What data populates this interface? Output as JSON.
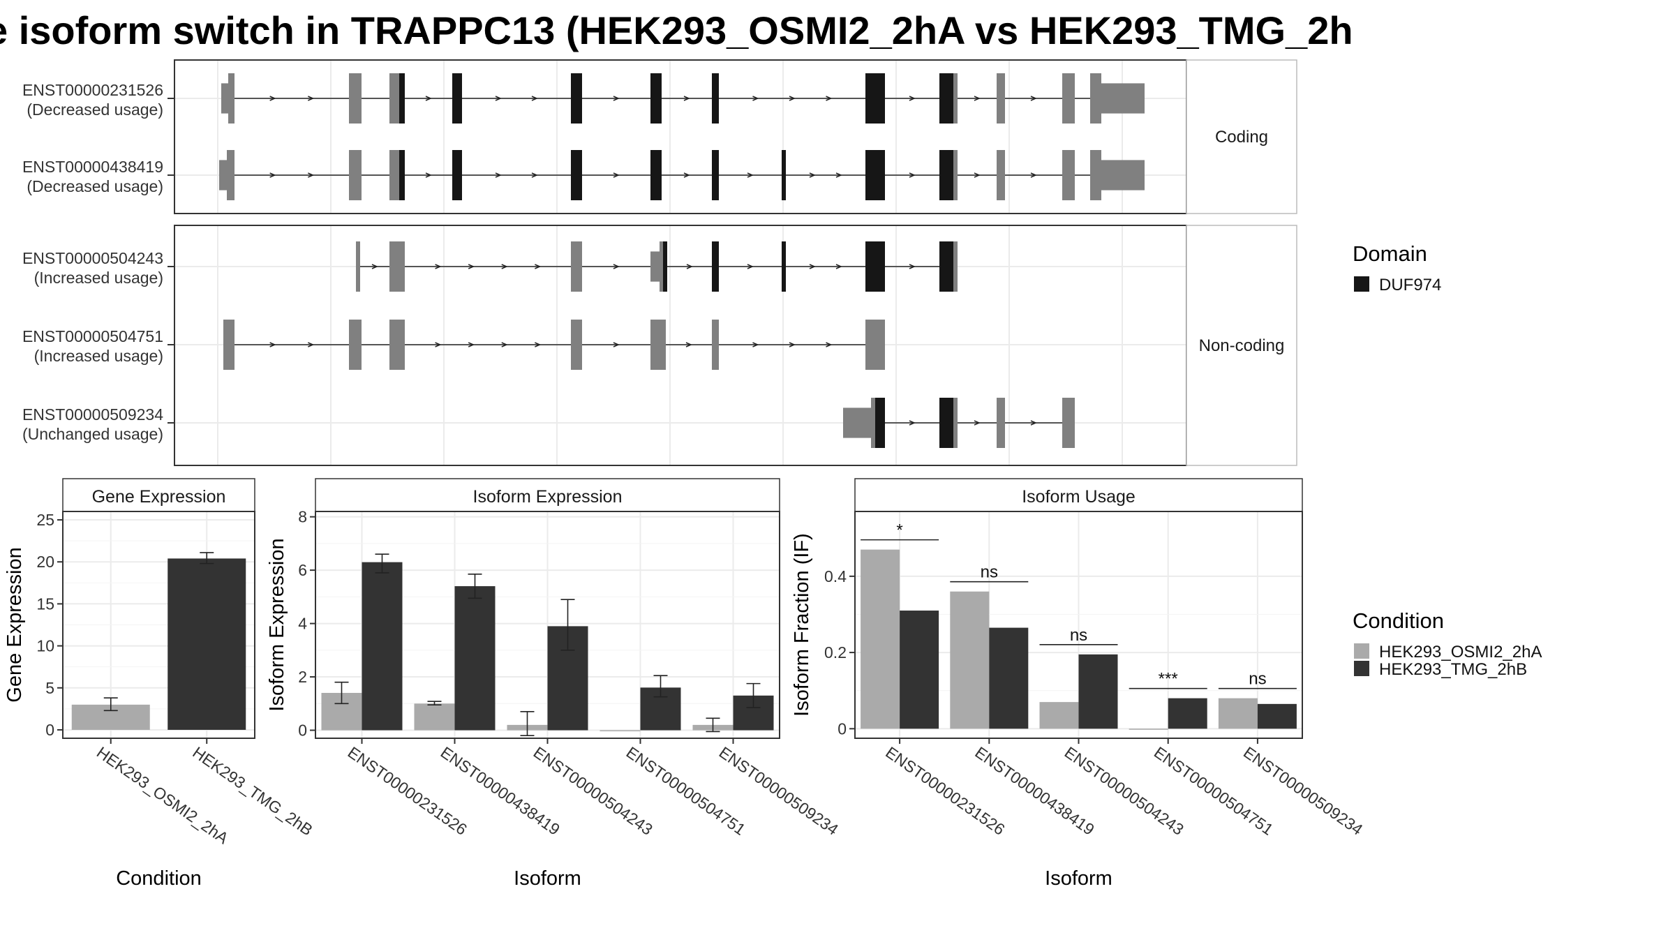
{
  "title": "e isoform switch in TRAPPC13 (HEK293_OSMI2_2hA vs HEK293_TMG_2h",
  "colors": {
    "condition_a": "#aaaaaa",
    "condition_b": "#333333",
    "domain": "#161616",
    "noncoding": "#808080",
    "grid": "#ebebeb"
  },
  "chart_data": [
    {
      "type": "gene-structure",
      "facets": [
        {
          "label": "Coding",
          "transcripts": [
            {
              "id": "ENST00000231526",
              "usage": "(Decreased usage)"
            },
            {
              "id": "ENST00000438419",
              "usage": "(Decreased usage)"
            }
          ]
        },
        {
          "label": "Non-coding",
          "transcripts": [
            {
              "id": "ENST00000504243",
              "usage": "(Increased usage)"
            },
            {
              "id": "ENST00000504751",
              "usage": "(Increased usage)"
            },
            {
              "id": "ENST00000509234",
              "usage": "(Unchanged usage)"
            }
          ]
        }
      ],
      "legend": {
        "title": "Domain",
        "entries": [
          "DUF974"
        ]
      }
    },
    {
      "type": "bar",
      "title": "Gene Expression",
      "xlabel": "Condition",
      "ylabel": "Gene Expression",
      "ylim": [
        -1,
        26
      ],
      "yticks": [
        0,
        5,
        10,
        15,
        20,
        25
      ],
      "categories": [
        "HEK293_OSMI2_2hA",
        "HEK293_TMG_2hB"
      ],
      "values": [
        3.0,
        20.4
      ],
      "errors": [
        [
          2.3,
          3.8
        ],
        [
          19.8,
          21.1
        ]
      ]
    },
    {
      "type": "bar",
      "title": "Isoform Expression",
      "xlabel": "Isoform",
      "ylabel": "Isoform Expression",
      "ylim": [
        -0.3,
        8.2
      ],
      "yticks": [
        0,
        2,
        4,
        6,
        8
      ],
      "categories": [
        "ENST00000231526",
        "ENST00000438419",
        "ENST00000504243",
        "ENST00000504751",
        "ENST00000509234"
      ],
      "series": [
        {
          "name": "HEK293_OSMI2_2hA",
          "values": [
            1.4,
            1.0,
            0.2,
            0.0,
            0.2
          ],
          "errors": [
            [
              1.0,
              1.8
            ],
            [
              0.95,
              1.08
            ],
            [
              -0.2,
              0.7
            ],
            [
              0.0,
              0.0
            ],
            [
              -0.05,
              0.45
            ]
          ]
        },
        {
          "name": "HEK293_TMG_2hB",
          "values": [
            6.3,
            5.4,
            3.9,
            1.6,
            1.3
          ],
          "errors": [
            [
              5.9,
              6.6
            ],
            [
              4.95,
              5.85
            ],
            [
              3.0,
              4.9
            ],
            [
              1.25,
              2.05
            ],
            [
              0.85,
              1.75
            ]
          ]
        }
      ]
    },
    {
      "type": "bar",
      "title": "Isoform Usage",
      "xlabel": "Isoform",
      "ylabel": "Isoform Fraction (IF)",
      "ylim": [
        -0.025,
        0.57
      ],
      "yticks": [
        0.0,
        0.2,
        0.4
      ],
      "categories": [
        "ENST00000231526",
        "ENST00000438419",
        "ENST00000504243",
        "ENST00000504751",
        "ENST00000509234"
      ],
      "series": [
        {
          "name": "HEK293_OSMI2_2hA",
          "values": [
            0.47,
            0.36,
            0.07,
            0.0,
            0.08
          ]
        },
        {
          "name": "HEK293_TMG_2hB",
          "values": [
            0.31,
            0.265,
            0.195,
            0.08,
            0.065
          ]
        }
      ],
      "significance": [
        "*",
        "ns",
        "ns",
        "***",
        "ns"
      ]
    }
  ],
  "legend": {
    "title": "Condition",
    "entries": [
      "HEK293_OSMI2_2hA",
      "HEK293_TMG_2hB"
    ]
  }
}
